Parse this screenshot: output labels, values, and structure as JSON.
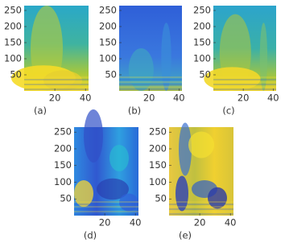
{
  "chart_data": [
    {
      "type": "spectrogram",
      "caption": "(a)",
      "xlim": [
        0,
        42
      ],
      "ylim": [
        0,
        265
      ],
      "xticks": [
        20,
        40
      ],
      "yticks": [
        50,
        100,
        150,
        200,
        250
      ]
    },
    {
      "type": "spectrogram",
      "caption": "(b)",
      "xlim": [
        0,
        42
      ],
      "ylim": [
        0,
        265
      ],
      "xticks": [
        20,
        40
      ],
      "yticks": [
        50,
        100,
        150,
        200,
        250
      ]
    },
    {
      "type": "spectrogram",
      "caption": "(c)",
      "xlim": [
        0,
        42
      ],
      "ylim": [
        0,
        265
      ],
      "xticks": [
        20,
        40
      ],
      "yticks": [
        50,
        100,
        150,
        200,
        250
      ]
    },
    {
      "type": "spectrogram",
      "caption": "(d)",
      "xlim": [
        0,
        42
      ],
      "ylim": [
        0,
        265
      ],
      "xticks": [
        20,
        40
      ],
      "yticks": [
        50,
        100,
        150,
        200,
        250
      ]
    },
    {
      "type": "spectrogram",
      "caption": "(e)",
      "xlim": [
        0,
        42
      ],
      "ylim": [
        0,
        265
      ],
      "xticks": [
        20,
        40
      ],
      "yticks": [
        50,
        100,
        150,
        200,
        250
      ]
    }
  ]
}
